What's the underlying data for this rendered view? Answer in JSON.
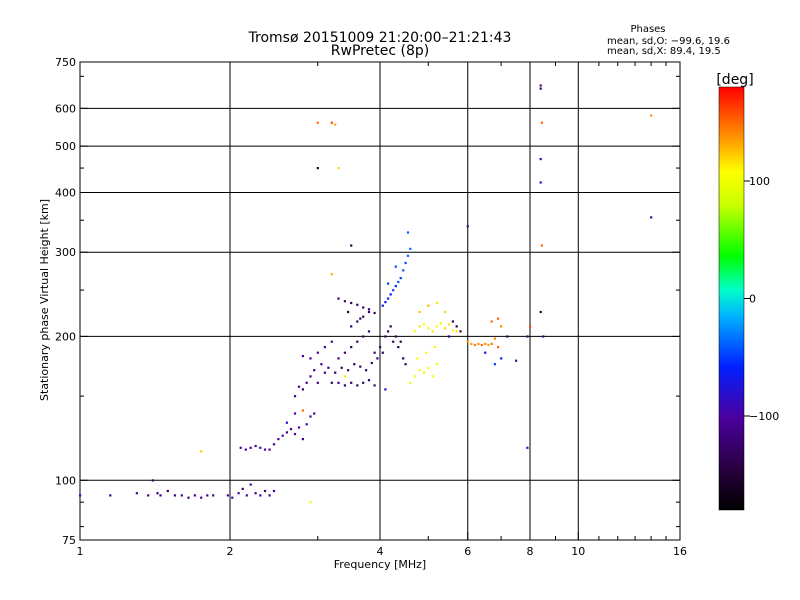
{
  "chart_data": {
    "type": "scatter",
    "title": "Tromsø 20151009 21:20:00–21:21:43",
    "subtitle": "RwPretec (8p)",
    "xlabel": "Frequency [MHz]",
    "ylabel": "Stationary phase Virtual Height [km]",
    "x_scale": "log",
    "y_scale": "log",
    "xlim": [
      1,
      16
    ],
    "ylim": [
      75,
      750
    ],
    "x_ticks": [
      {
        "v": 1,
        "label": "1"
      },
      {
        "v": 2,
        "label": "2"
      },
      {
        "v": 4,
        "label": "4"
      },
      {
        "v": 6,
        "label": "6"
      },
      {
        "v": 8,
        "label": "8"
      },
      {
        "v": 10,
        "label": "10"
      },
      {
        "v": 16,
        "label": "16"
      }
    ],
    "y_ticks": [
      {
        "v": 75,
        "label": "75"
      },
      {
        "v": 100,
        "label": "100"
      },
      {
        "v": 200,
        "label": "200"
      },
      {
        "v": 300,
        "label": "300"
      },
      {
        "v": 400,
        "label": "400"
      },
      {
        "v": 500,
        "label": "500"
      },
      {
        "v": 600,
        "label": "600"
      },
      {
        "v": 750,
        "label": "750"
      }
    ],
    "x_gridlines": [
      2,
      4,
      6,
      8,
      10
    ],
    "y_gridlines": [
      100,
      200,
      300,
      400,
      500,
      600
    ],
    "phase_stats": {
      "title": "Phases",
      "line_o": "mean, sd,O: −99.6, 19.6",
      "line_x": "mean, sd,X:  89.4, 19.5"
    },
    "colorbar": {
      "label": "[deg]",
      "range": [
        -180,
        180
      ],
      "ticks": [
        {
          "v": 100,
          "label": "100"
        },
        {
          "v": 0,
          "label": "0"
        },
        {
          "v": -100,
          "label": "−100"
        }
      ]
    },
    "points": [
      [
        1.0,
        93,
        -85
      ],
      [
        1.15,
        93,
        -110
      ],
      [
        1.3,
        94,
        -100
      ],
      [
        1.37,
        93,
        -110
      ],
      [
        1.4,
        100,
        -130
      ],
      [
        1.43,
        94,
        -120
      ],
      [
        1.45,
        93,
        -115
      ],
      [
        1.5,
        95,
        -125
      ],
      [
        1.55,
        93,
        -110
      ],
      [
        1.6,
        93,
        -100
      ],
      [
        1.65,
        92,
        -120
      ],
      [
        1.7,
        93,
        -110
      ],
      [
        1.75,
        92,
        -100
      ],
      [
        1.8,
        93,
        -120
      ],
      [
        1.85,
        93,
        -110
      ],
      [
        1.98,
        93,
        -100
      ],
      [
        2.02,
        92,
        -95
      ],
      [
        2.08,
        94,
        -110
      ],
      [
        2.12,
        96,
        -120
      ],
      [
        2.16,
        93,
        -90
      ],
      [
        2.2,
        98,
        -100
      ],
      [
        2.25,
        94,
        -115
      ],
      [
        2.3,
        93,
        -85
      ],
      [
        2.35,
        95,
        -110
      ],
      [
        2.4,
        93,
        -120
      ],
      [
        2.45,
        95,
        -100
      ],
      [
        2.1,
        117,
        -90
      ],
      [
        2.15,
        116,
        -95
      ],
      [
        2.2,
        117,
        -100
      ],
      [
        2.25,
        118,
        -105
      ],
      [
        2.3,
        117,
        -90
      ],
      [
        2.35,
        116,
        -95
      ],
      [
        2.4,
        116,
        -100
      ],
      [
        2.45,
        119,
        -110
      ],
      [
        2.5,
        122,
        -100
      ],
      [
        2.55,
        124,
        -95
      ],
      [
        2.6,
        126,
        -105
      ],
      [
        2.65,
        128,
        -100
      ],
      [
        2.7,
        125,
        -90
      ],
      [
        2.75,
        129,
        -100
      ],
      [
        2.8,
        122,
        -110
      ],
      [
        2.85,
        131,
        -95
      ],
      [
        2.9,
        136,
        -100
      ],
      [
        2.95,
        138,
        -105
      ],
      [
        2.6,
        132,
        -80
      ],
      [
        2.7,
        138,
        -90
      ],
      [
        2.7,
        150,
        -110
      ],
      [
        2.75,
        157,
        -105
      ],
      [
        2.8,
        155,
        -120
      ],
      [
        2.85,
        160,
        -110
      ],
      [
        2.9,
        165,
        -115
      ],
      [
        2.95,
        170,
        -105
      ],
      [
        3.0,
        160,
        -120
      ],
      [
        3.05,
        175,
        -110
      ],
      [
        3.1,
        168,
        -115
      ],
      [
        3.15,
        172,
        -120
      ],
      [
        2.8,
        182,
        -100
      ],
      [
        2.9,
        180,
        -95
      ],
      [
        3.0,
        185,
        -105
      ],
      [
        3.1,
        190,
        -100
      ],
      [
        3.2,
        195,
        -110
      ],
      [
        3.2,
        160,
        -130
      ],
      [
        3.3,
        160,
        -120
      ],
      [
        3.4,
        158,
        -125
      ],
      [
        3.5,
        160,
        -130
      ],
      [
        3.6,
        158,
        -120
      ],
      [
        3.7,
        160,
        -125
      ],
      [
        3.8,
        162,
        -130
      ],
      [
        3.9,
        158,
        -120
      ],
      [
        3.25,
        168,
        -135
      ],
      [
        3.35,
        172,
        -130
      ],
      [
        3.45,
        170,
        -125
      ],
      [
        3.55,
        175,
        -135
      ],
      [
        3.65,
        173,
        -130
      ],
      [
        3.75,
        170,
        -125
      ],
      [
        3.85,
        176,
        -130
      ],
      [
        3.95,
        180,
        -125
      ],
      [
        3.3,
        180,
        -120
      ],
      [
        3.4,
        185,
        -125
      ],
      [
        3.5,
        190,
        -130
      ],
      [
        3.6,
        195,
        -125
      ],
      [
        3.7,
        200,
        -130
      ],
      [
        3.8,
        205,
        -125
      ],
      [
        3.9,
        185,
        -130
      ],
      [
        4.0,
        190,
        -120
      ],
      [
        3.5,
        210,
        -130
      ],
      [
        3.6,
        215,
        -125
      ],
      [
        3.7,
        220,
        -130
      ],
      [
        3.8,
        225,
        -125
      ],
      [
        3.3,
        240,
        -130
      ],
      [
        3.4,
        237,
        -125
      ],
      [
        3.5,
        235,
        -130
      ],
      [
        3.6,
        233,
        -125
      ],
      [
        3.7,
        230,
        -120
      ],
      [
        3.8,
        228,
        -125
      ],
      [
        3.9,
        224,
        -130
      ],
      [
        3.45,
        225,
        -135
      ],
      [
        3.65,
        218,
        -130
      ],
      [
        4.05,
        232,
        -60
      ],
      [
        4.1,
        236,
        -65
      ],
      [
        4.15,
        240,
        -55
      ],
      [
        4.2,
        245,
        -60
      ],
      [
        4.25,
        250,
        -50
      ],
      [
        4.3,
        255,
        -55
      ],
      [
        4.35,
        260,
        -45
      ],
      [
        4.4,
        265,
        -50
      ],
      [
        4.45,
        275,
        -40
      ],
      [
        4.5,
        285,
        -45
      ],
      [
        4.55,
        295,
        -40
      ],
      [
        4.6,
        305,
        -35
      ],
      [
        4.55,
        330,
        -40
      ],
      [
        4.15,
        258,
        -50
      ],
      [
        4.3,
        280,
        -45
      ],
      [
        4.1,
        200,
        -140
      ],
      [
        4.15,
        205,
        -135
      ],
      [
        4.2,
        210,
        -140
      ],
      [
        4.25,
        195,
        -135
      ],
      [
        4.3,
        200,
        -140
      ],
      [
        4.35,
        190,
        -135
      ],
      [
        4.4,
        195,
        -140
      ],
      [
        4.05,
        185,
        -130
      ],
      [
        4.45,
        180,
        -140
      ],
      [
        4.5,
        175,
        -135
      ],
      [
        4.6,
        160,
        100
      ],
      [
        4.7,
        165,
        105
      ],
      [
        4.8,
        170,
        95
      ],
      [
        4.9,
        168,
        100
      ],
      [
        5.0,
        172,
        110
      ],
      [
        5.1,
        165,
        100
      ],
      [
        5.2,
        175,
        95
      ],
      [
        4.75,
        180,
        105
      ],
      [
        4.95,
        185,
        100
      ],
      [
        5.15,
        190,
        110
      ],
      [
        4.7,
        205,
        110
      ],
      [
        4.8,
        210,
        115
      ],
      [
        4.9,
        212,
        105
      ],
      [
        5.0,
        208,
        110
      ],
      [
        5.1,
        205,
        115
      ],
      [
        5.2,
        210,
        105
      ],
      [
        5.3,
        213,
        110
      ],
      [
        5.4,
        208,
        120
      ],
      [
        5.5,
        212,
        115
      ],
      [
        5.6,
        206,
        110
      ],
      [
        5.7,
        205,
        115
      ],
      [
        5.2,
        235,
        115
      ],
      [
        5.4,
        225,
        120
      ],
      [
        4.8,
        225,
        125
      ],
      [
        5.0,
        232,
        130
      ],
      [
        5.7,
        210,
        -140
      ],
      [
        5.8,
        205,
        -130
      ],
      [
        5.6,
        215,
        -120
      ],
      [
        5.5,
        200,
        -125
      ],
      [
        6.0,
        195,
        140
      ],
      [
        6.1,
        193,
        135
      ],
      [
        6.2,
        192,
        145
      ],
      [
        6.3,
        193,
        140
      ],
      [
        6.4,
        192,
        150
      ],
      [
        6.5,
        193,
        140
      ],
      [
        6.6,
        192,
        135
      ],
      [
        6.7,
        193,
        145
      ],
      [
        6.8,
        198,
        140
      ],
      [
        6.9,
        190,
        150
      ],
      [
        6.7,
        215,
        150
      ],
      [
        6.9,
        218,
        155
      ],
      [
        7.0,
        210,
        140
      ],
      [
        6.5,
        185,
        -70
      ],
      [
        6.8,
        175,
        -50
      ],
      [
        7.0,
        180,
        -60
      ],
      [
        7.2,
        200,
        -130
      ],
      [
        7.5,
        178,
        -100
      ],
      [
        7.9,
        200,
        -130
      ],
      [
        8.0,
        210,
        160
      ],
      [
        8.4,
        225,
        -150
      ],
      [
        8.5,
        200,
        -120
      ],
      [
        7.9,
        117,
        -70
      ],
      [
        8.4,
        660,
        -130
      ],
      [
        8.4,
        670,
        -100
      ],
      [
        8.45,
        560,
        150
      ],
      [
        8.4,
        470,
        -80
      ],
      [
        8.4,
        420,
        -70
      ],
      [
        8.45,
        310,
        150
      ],
      [
        3.0,
        450,
        -150
      ],
      [
        3.0,
        560,
        150
      ],
      [
        3.2,
        560,
        160
      ],
      [
        3.25,
        555,
        130
      ],
      [
        3.3,
        450,
        120
      ],
      [
        3.5,
        310,
        -140
      ],
      [
        6.0,
        340,
        -100
      ],
      [
        14.0,
        580,
        140
      ],
      [
        14.0,
        355,
        -100
      ],
      [
        3.4,
        165,
        90
      ],
      [
        3.2,
        270,
        130
      ],
      [
        2.9,
        90,
        110
      ],
      [
        1.75,
        115,
        120
      ],
      [
        2.8,
        140,
        150
      ],
      [
        4.1,
        155,
        -80
      ]
    ]
  }
}
